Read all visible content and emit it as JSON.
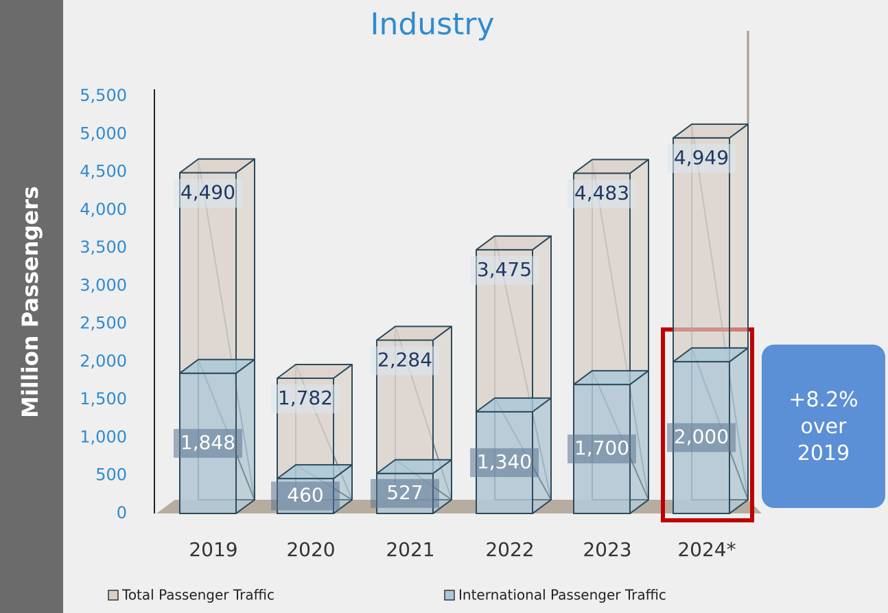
{
  "chart_data": {
    "type": "bar3d",
    "title": "Industry",
    "y_label": "Million Passengers",
    "categories": [
      "2019",
      "2020",
      "2021",
      "2022",
      "2023",
      "2024*"
    ],
    "series": [
      {
        "name": "Total Passenger Traffic",
        "color": "#d9cfc6",
        "values": [
          4490,
          1782,
          2284,
          3475,
          4483,
          4949
        ],
        "value_labels": [
          "4,490",
          "1,782",
          "2,284",
          "3,475",
          "4,483",
          "4,949"
        ]
      },
      {
        "name": "International Passenger Traffic",
        "color": "#a8c8d8",
        "values": [
          1848,
          460,
          527,
          1340,
          1700,
          2000
        ],
        "value_labels": [
          "1,848",
          "460",
          "527",
          "1,340",
          "1,700",
          "2,000"
        ]
      }
    ],
    "ylim": [
      0,
      5500
    ],
    "yticks": [
      0,
      500,
      {
        "value": 1000,
        "label": "1,000"
      },
      {
        "value": 1500,
        "label": "1,500"
      },
      {
        "value": 2000,
        "label": "2,000"
      },
      {
        "value": 2500,
        "label": "2,500"
      },
      {
        "value": 3000,
        "label": "3,000"
      },
      {
        "value": 3500,
        "label": "3,500"
      },
      {
        "value": 4000,
        "label": "4,000"
      },
      {
        "value": 4500,
        "label": "4,500"
      },
      {
        "value": 5000,
        "label": "5,000"
      },
      {
        "value": 5500,
        "label": "5,500"
      }
    ],
    "annotation": "+8.2% over 2019"
  }
}
